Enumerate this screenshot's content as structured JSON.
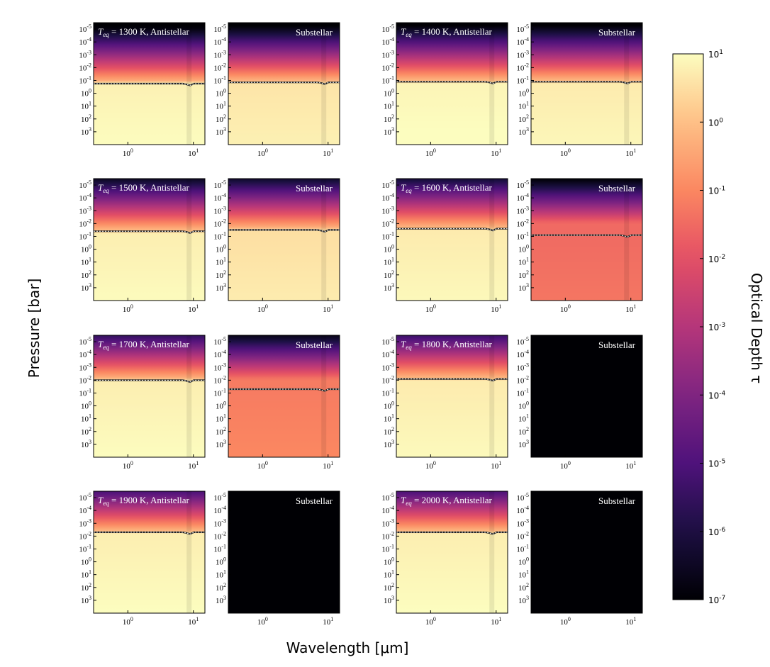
{
  "chart_data": {
    "type": "heatmap",
    "xlabel": "Wavelength [μm]",
    "ylabel": "Pressure [bar]",
    "colorbar": {
      "label": "Optical Depth τ",
      "scale": "log",
      "range": [
        1e-07,
        10
      ],
      "colormap": "magma",
      "ticks": [
        {
          "base": "10",
          "exp": "1"
        },
        {
          "base": "10",
          "exp": "0"
        },
        {
          "base": "10",
          "exp": "-1"
        },
        {
          "base": "10",
          "exp": "-2"
        },
        {
          "base": "10",
          "exp": "-3"
        },
        {
          "base": "10",
          "exp": "-4"
        },
        {
          "base": "10",
          "exp": "-5"
        },
        {
          "base": "10",
          "exp": "-6"
        },
        {
          "base": "10",
          "exp": "-7"
        }
      ]
    },
    "x_axis": {
      "scale": "log",
      "range_um": [
        0.3,
        15
      ],
      "ticks": [
        {
          "base": "10",
          "exp": "0"
        },
        {
          "base": "10",
          "exp": "1"
        }
      ]
    },
    "y_axis": {
      "scale": "log",
      "range_bar": [
        1e-05,
        10000
      ],
      "ticks": [
        {
          "base": "10",
          "exp": "-5"
        },
        {
          "base": "10",
          "exp": "-4"
        },
        {
          "base": "10",
          "exp": "-3"
        },
        {
          "base": "10",
          "exp": "-2"
        },
        {
          "base": "10",
          "exp": "-1"
        },
        {
          "base": "10",
          "exp": "0"
        },
        {
          "base": "10",
          "exp": "1"
        },
        {
          "base": "10",
          "exp": "2"
        },
        {
          "base": "10",
          "exp": "3"
        }
      ]
    },
    "teq_prefix": "T",
    "teq_subscript": "eq",
    "teq_eq": " = ",
    "panels": [
      {
        "teq": "1300",
        "anti_suffix": " K, Antistellar",
        "sub_label": "Substellar",
        "anti": {
          "surface_logp": -0.75,
          "deep_logtau": 0.8
        },
        "sub": {
          "surface_logp": -0.85,
          "deep_logtau": 0.6
        }
      },
      {
        "teq": "1400",
        "anti_suffix": " K, Antistellar",
        "sub_label": "Substellar",
        "anti": {
          "surface_logp": -0.9,
          "deep_logtau": 0.85
        },
        "sub": {
          "surface_logp": -0.9,
          "deep_logtau": 0.7
        }
      },
      {
        "teq": "1500",
        "anti_suffix": " K, Antistellar",
        "sub_label": "Substellar",
        "anti": {
          "surface_logp": -1.4,
          "deep_logtau": 0.75
        },
        "sub": {
          "surface_logp": -1.5,
          "deep_logtau": 0.5
        }
      },
      {
        "teq": "1600",
        "anti_suffix": " K, Antistellar",
        "sub_label": "Substellar",
        "anti": {
          "surface_logp": -1.6,
          "deep_logtau": 0.7
        },
        "sub": {
          "surface_logp": -1.1,
          "deep_logtau": -1.5
        }
      },
      {
        "teq": "1700",
        "anti_suffix": " K, Antistellar",
        "sub_label": "Substellar",
        "anti": {
          "surface_logp": -2.0,
          "deep_logtau": 0.75
        },
        "sub": {
          "surface_logp": -1.3,
          "deep_logtau": -1.2
        }
      },
      {
        "teq": "1800",
        "anti_suffix": " K, Antistellar",
        "sub_label": "Substellar",
        "anti": {
          "surface_logp": -2.1,
          "deep_logtau": 0.7
        },
        "sub": {
          "surface_logp": null,
          "deep_logtau": -7
        }
      },
      {
        "teq": "1900",
        "anti_suffix": " K, Antistellar",
        "sub_label": "Substellar",
        "anti": {
          "surface_logp": -2.3,
          "deep_logtau": 0.75
        },
        "sub": {
          "surface_logp": null,
          "deep_logtau": -7
        }
      },
      {
        "teq": "2000",
        "anti_suffix": " K, Antistellar",
        "sub_label": "Substellar",
        "anti": {
          "surface_logp": -2.3,
          "deep_logtau": 0.75
        },
        "sub": {
          "surface_logp": null,
          "deep_logtau": -7
        }
      }
    ]
  }
}
